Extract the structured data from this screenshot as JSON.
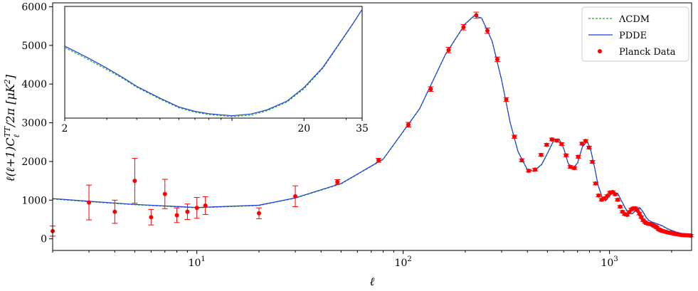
{
  "chart_data": [
    {
      "type": "scatter",
      "title": "",
      "xlabel": "ℓ",
      "ylabel": "ℓ(ℓ+1)C_ℓ^TT/2π [μK²]",
      "x_scale": "log",
      "xlim": [
        2,
        2500
      ],
      "ylim": [
        -300,
        6100
      ],
      "x_ticks": [
        {
          "value": 10,
          "label": "10",
          "sup": "1"
        },
        {
          "value": 100,
          "label": "10",
          "sup": "2"
        },
        {
          "value": 1000,
          "label": "10",
          "sup": "3"
        }
      ],
      "y_ticks": [
        0,
        1000,
        2000,
        3000,
        4000,
        5000,
        6000
      ],
      "grid": false,
      "legend_position": "top-right",
      "series": [
        {
          "name": "ΛCDM",
          "kind": "line",
          "color": "#2ca02c",
          "dash": "dashed",
          "x": [
            2,
            3,
            5,
            10,
            20,
            30,
            50,
            80,
            120,
            160,
            200,
            220,
            240,
            270,
            300,
            330,
            360,
            400,
            430,
            470,
            500,
            540,
            570,
            600,
            630,
            660,
            700,
            740,
            780,
            810,
            850,
            880,
            920,
            960,
            1000,
            1050,
            1100,
            1150,
            1200,
            1250,
            1300,
            1350,
            1400,
            1450,
            1500,
            1550,
            1600,
            1700,
            1800,
            1900,
            2000,
            2100,
            2200,
            2350,
            2500
          ],
          "y": [
            1030,
            960,
            880,
            800,
            860,
            1050,
            1420,
            2050,
            3350,
            4750,
            5550,
            5750,
            5700,
            5100,
            4100,
            3000,
            2250,
            1780,
            1740,
            1920,
            2200,
            2560,
            2570,
            2330,
            1950,
            1800,
            1950,
            2380,
            2510,
            2300,
            1800,
            1380,
            1080,
            980,
            1100,
            1200,
            1150,
            950,
            760,
            640,
            650,
            760,
            800,
            700,
            560,
            470,
            430,
            380,
            330,
            260,
            210,
            170,
            140,
            110,
            90
          ]
        },
        {
          "name": "PDDE",
          "kind": "line",
          "color": "#1f3fd9",
          "dash": "solid",
          "x": [
            2,
            3,
            5,
            10,
            20,
            30,
            50,
            80,
            120,
            160,
            200,
            220,
            240,
            270,
            300,
            330,
            360,
            400,
            430,
            470,
            500,
            540,
            570,
            600,
            630,
            660,
            700,
            740,
            780,
            810,
            850,
            880,
            920,
            960,
            1000,
            1050,
            1100,
            1150,
            1200,
            1250,
            1300,
            1350,
            1400,
            1450,
            1500,
            1550,
            1600,
            1700,
            1800,
            1900,
            2000,
            2100,
            2200,
            2350,
            2500
          ],
          "y": [
            1040,
            970,
            890,
            810,
            870,
            1060,
            1430,
            2060,
            3360,
            4760,
            5560,
            5760,
            5710,
            5110,
            4110,
            3010,
            2260,
            1790,
            1750,
            1930,
            2210,
            2570,
            2580,
            2340,
            1960,
            1810,
            1960,
            2390,
            2520,
            2310,
            1810,
            1390,
            1090,
            990,
            1110,
            1210,
            1160,
            960,
            770,
            650,
            660,
            770,
            810,
            710,
            570,
            480,
            440,
            390,
            340,
            270,
            220,
            180,
            150,
            120,
            100
          ]
        },
        {
          "name": "Planck Data",
          "kind": "points",
          "color": "#ff0000",
          "x": [
            2,
            3,
            4,
            5,
            6,
            7,
            8,
            9,
            10,
            11,
            20,
            30,
            48,
            76,
            106,
            136,
            166,
            196,
            226,
            256,
            286,
            316,
            346,
            376,
            406,
            436,
            466,
            496,
            526,
            556,
            586,
            616,
            646,
            676,
            706,
            736,
            766,
            796,
            826,
            856,
            886,
            916,
            946,
            976,
            1006,
            1036,
            1066,
            1096,
            1126,
            1156,
            1186,
            1216,
            1246,
            1276,
            1306,
            1336,
            1366,
            1396,
            1426,
            1456,
            1486,
            1516,
            1546,
            1576,
            1606,
            1636,
            1666,
            1696,
            1726,
            1756,
            1786,
            1816,
            1846,
            1876,
            1906,
            1936,
            1966,
            1996,
            2026,
            2056,
            2086,
            2116,
            2146,
            2176,
            2206,
            2236,
            2266,
            2296,
            2326,
            2356,
            2386,
            2416,
            2446,
            2476
          ],
          "y": [
            200,
            940,
            700,
            1500,
            560,
            1160,
            610,
            700,
            800,
            860,
            660,
            1100,
            1470,
            2030,
            2950,
            3870,
            4880,
            5470,
            5780,
            5380,
            4640,
            3600,
            2640,
            2030,
            1760,
            1790,
            2170,
            2430,
            2570,
            2540,
            2450,
            2160,
            1860,
            1830,
            2120,
            2460,
            2530,
            2360,
            1990,
            1430,
            1120,
            1010,
            1050,
            1110,
            1200,
            1210,
            1150,
            1010,
            830,
            700,
            640,
            620,
            690,
            760,
            790,
            790,
            740,
            650,
            560,
            480,
            430,
            400,
            390,
            380,
            370,
            340,
            320,
            290,
            250,
            230,
            210,
            200,
            190,
            180,
            170,
            160,
            155,
            150,
            140,
            130,
            125,
            120,
            115,
            110,
            105,
            100,
            98,
            96,
            94,
            92,
            90,
            88,
            86,
            84
          ],
          "err": [
            130,
            450,
            300,
            580,
            200,
            380,
            190,
            200,
            270,
            230,
            140,
            270,
            60,
            50,
            60,
            60,
            70,
            70,
            80,
            70,
            60,
            50,
            40,
            40,
            35,
            35,
            35,
            35,
            35,
            35,
            35,
            35,
            35,
            35,
            35,
            35,
            35,
            35,
            35,
            35,
            30,
            30,
            30,
            30,
            30,
            30,
            30,
            30,
            30,
            30,
            30,
            30,
            30,
            30,
            30,
            30,
            30,
            30,
            30,
            30,
            30,
            30,
            30,
            30,
            30,
            30,
            30,
            30,
            30,
            30,
            30,
            30,
            30,
            30,
            30,
            30,
            30,
            30,
            30,
            30,
            30,
            30,
            30,
            30,
            30,
            30,
            30,
            30,
            30,
            30,
            30,
            30,
            30,
            30
          ]
        }
      ]
    },
    {
      "type": "line",
      "inset": true,
      "x_scale": "log",
      "xlim": [
        2,
        35
      ],
      "x_ticks": [
        {
          "value": 2,
          "label": "2"
        },
        {
          "value": 20,
          "label": "20"
        },
        {
          "value": 35,
          "label": "35"
        }
      ],
      "series": [
        {
          "name": "ΛCDM",
          "color": "#2ca02c",
          "dash": "dashed",
          "x": [
            2,
            2.5,
            3,
            3.5,
            4,
            5,
            6,
            7,
            8,
            10,
            12,
            14,
            17,
            20,
            24,
            28,
            32,
            35
          ],
          "y": [
            1020,
            980,
            945,
            915,
            885,
            845,
            815,
            800,
            792,
            785,
            790,
            805,
            835,
            880,
            950,
            1030,
            1100,
            1150
          ]
        },
        {
          "name": "PDDE",
          "color": "#1f3fd9",
          "dash": "solid",
          "x": [
            2,
            2.5,
            3,
            3.5,
            4,
            5,
            6,
            7,
            8,
            10,
            12,
            14,
            17,
            20,
            24,
            28,
            32,
            35
          ],
          "y": [
            1025,
            985,
            950,
            918,
            888,
            848,
            818,
            803,
            795,
            788,
            794,
            808,
            838,
            884,
            953,
            1032,
            1101,
            1150
          ]
        }
      ]
    }
  ],
  "legend": [
    {
      "label": "ΛCDM",
      "color": "#2ca02c",
      "kind": "dashed"
    },
    {
      "label": "PDDE",
      "color": "#1f3fd9",
      "kind": "solid"
    },
    {
      "label": "Planck Data",
      "color": "#ff0000",
      "kind": "point"
    }
  ]
}
